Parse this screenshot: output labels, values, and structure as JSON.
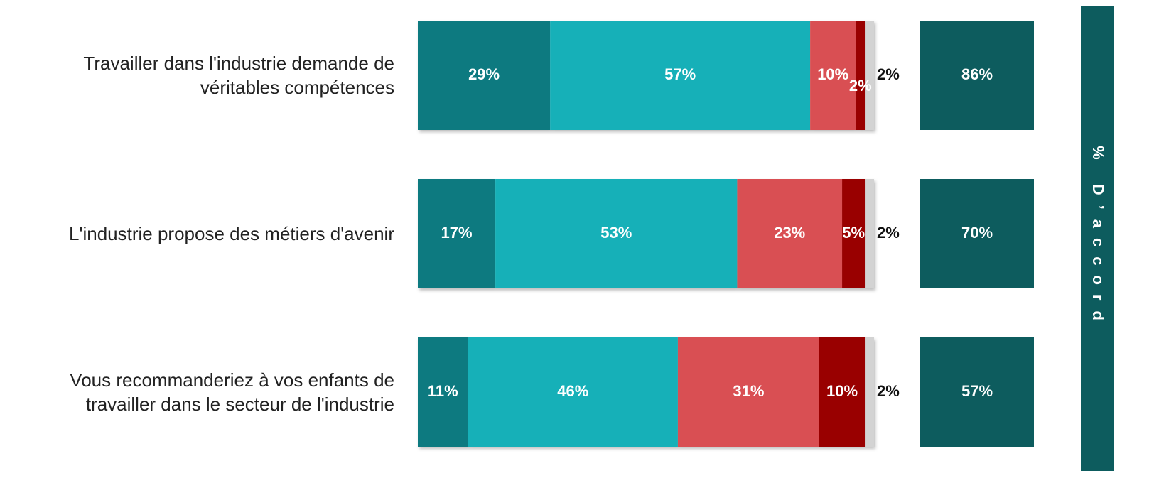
{
  "chart_data": {
    "type": "stacked_bar_horizontal",
    "categories": [
      "Travailler dans l'industrie demande de véritables compétences",
      "L'industrie propose des métiers d'avenir",
      "Vous recommanderiez à vos enfants de travailler dans le secteur de l'industrie"
    ],
    "xlim": [
      0,
      100
    ],
    "series": [
      {
        "color": "#107a80",
        "values": [
          29,
          17,
          11
        ],
        "value_labels": [
          "29%",
          "17%",
          "11%"
        ]
      },
      {
        "color": "#15b0b8",
        "values": [
          57,
          53,
          46
        ],
        "value_labels": [
          "57%",
          "53%",
          "46%"
        ]
      },
      {
        "color": "#d94f52",
        "values": [
          10,
          23,
          31
        ],
        "value_labels": [
          "10%",
          "23%",
          "31%"
        ]
      },
      {
        "color": "#990000",
        "values": [
          2,
          5,
          10
        ],
        "value_labels": [
          "2%",
          "5%",
          "10%"
        ]
      },
      {
        "color": "#d3d3d3",
        "values": [
          2,
          2,
          2
        ],
        "value_labels": [
          "2%",
          "2%",
          "2%"
        ]
      }
    ],
    "totals": {
      "color": "#0d5c5e",
      "values": [
        86,
        70,
        57
      ],
      "value_labels": [
        "86%",
        "70%",
        "57%"
      ]
    },
    "totals_label": "% D’accord"
  }
}
